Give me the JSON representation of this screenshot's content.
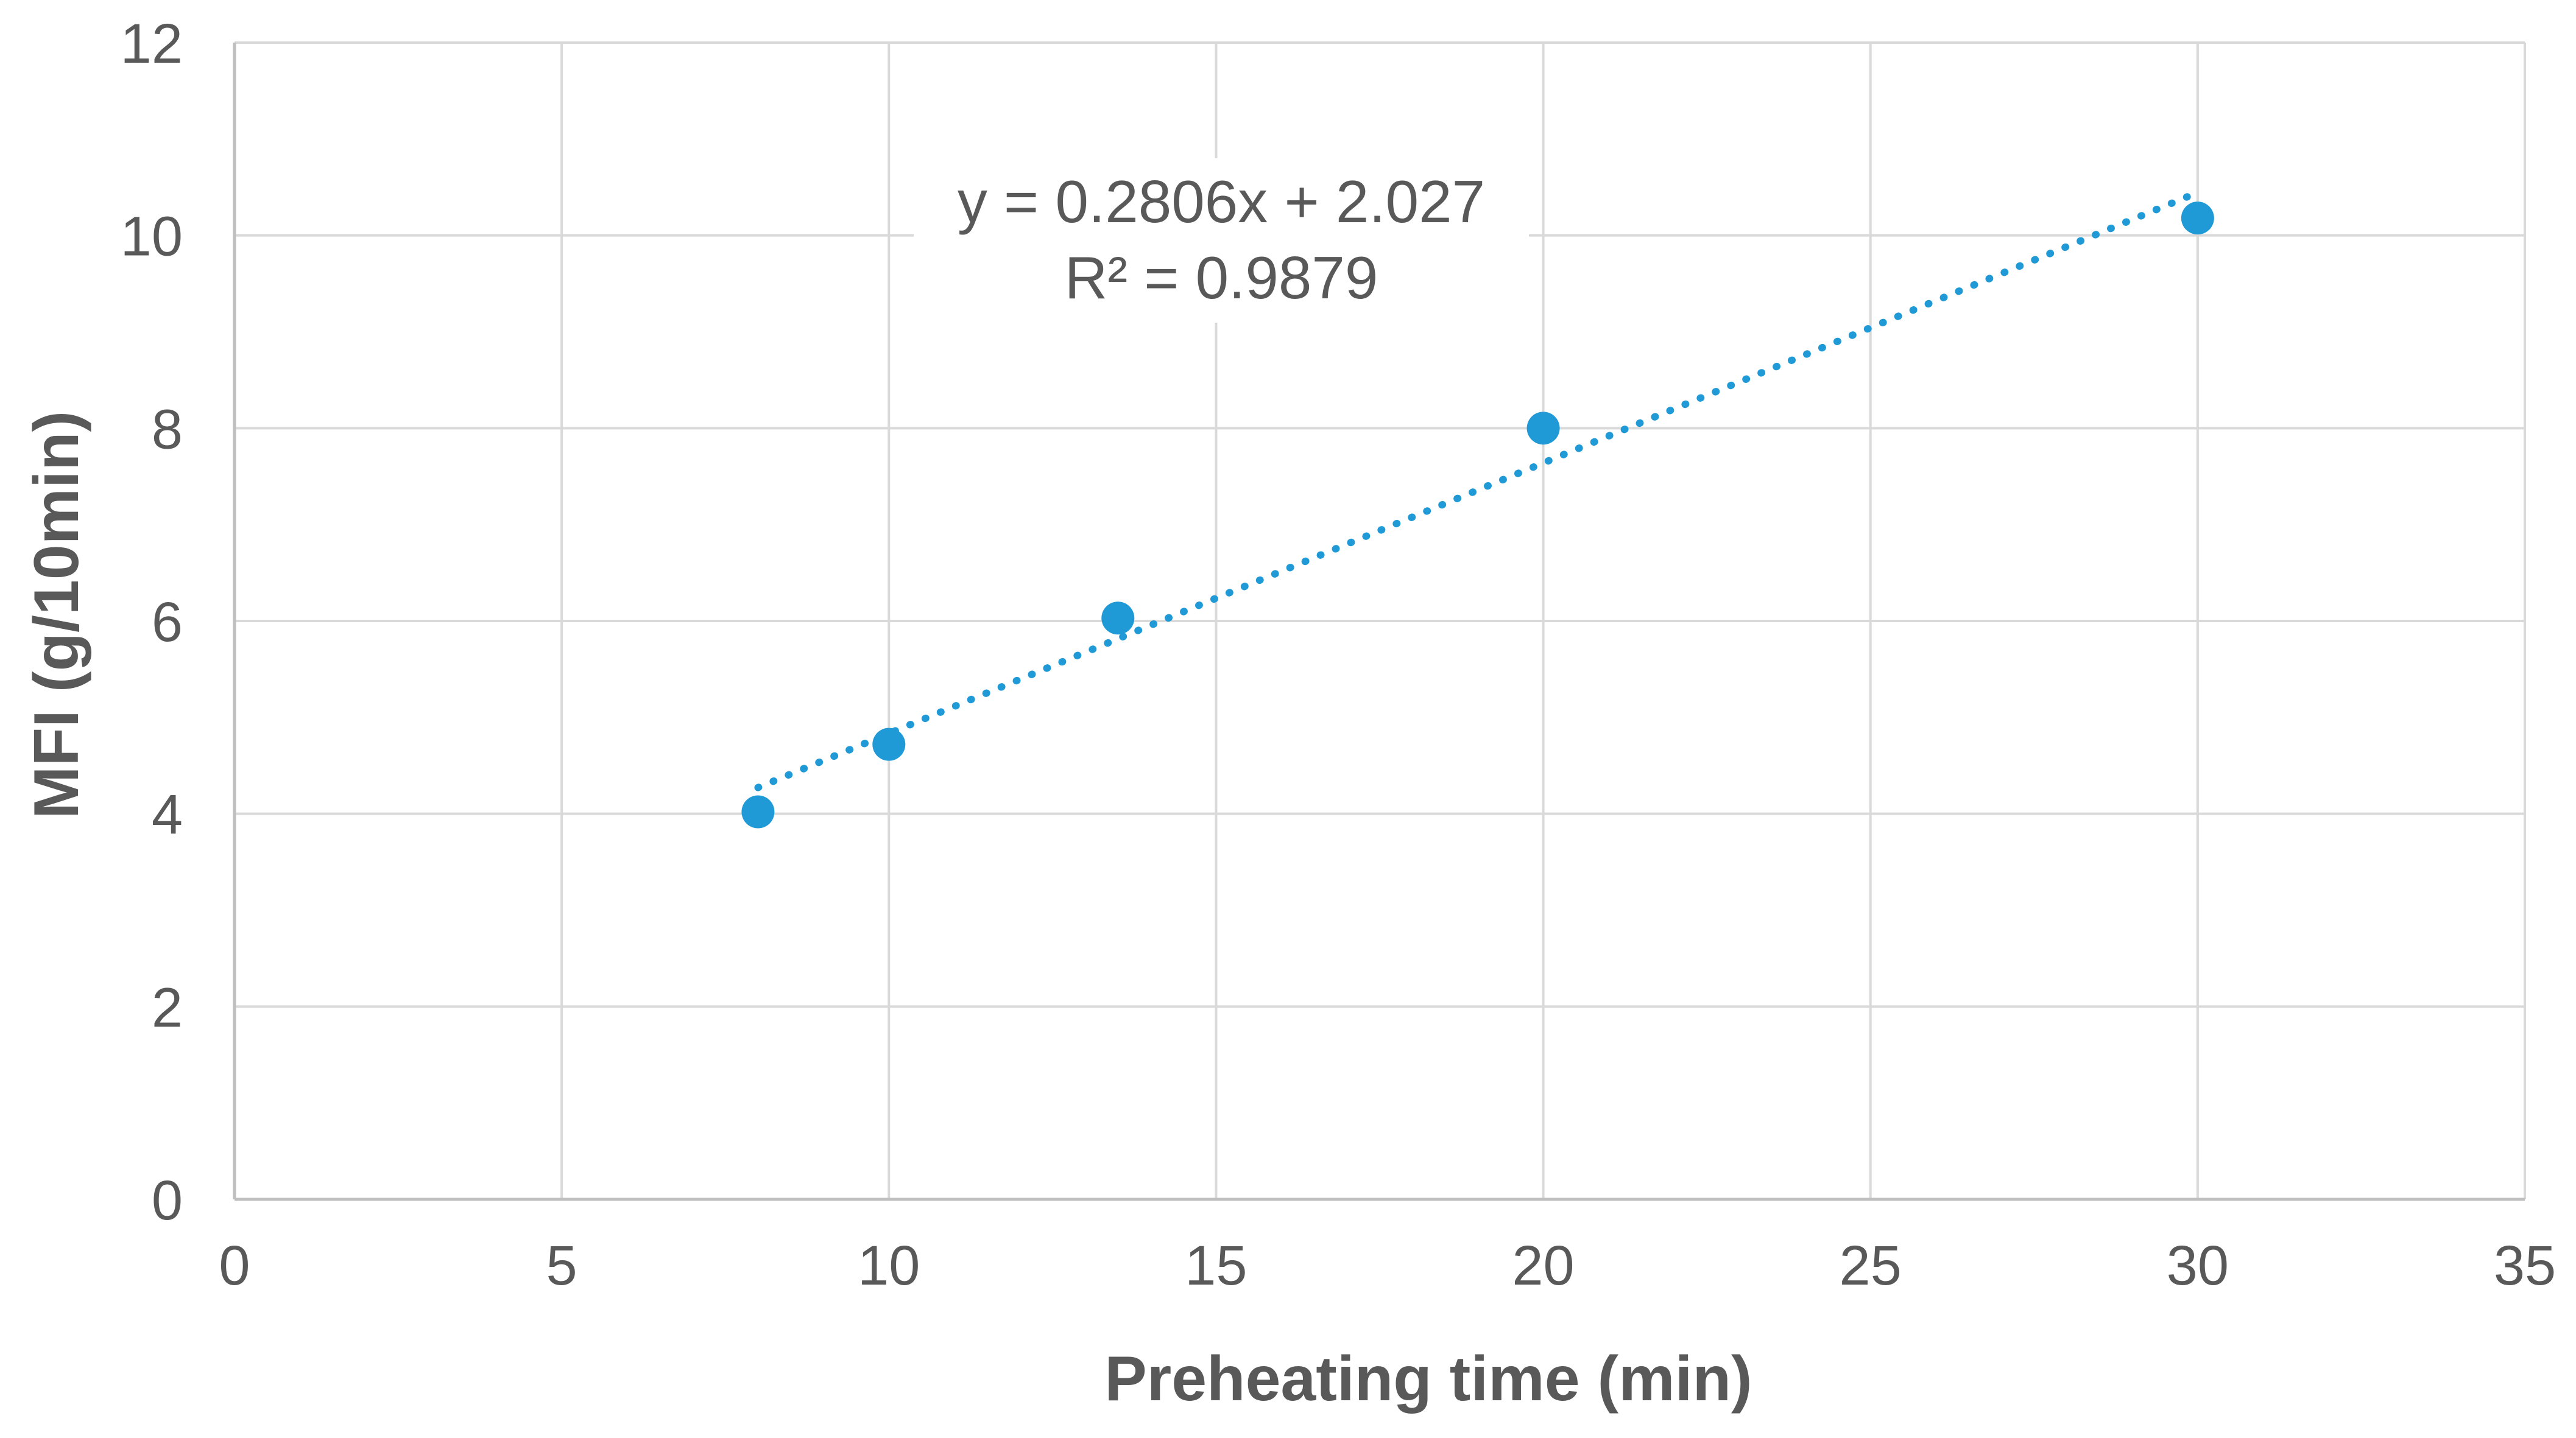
{
  "chart_data": {
    "type": "scatter",
    "title": "",
    "xlabel": "Preheating time (min)",
    "ylabel": "MFI (g/10min)",
    "xlim": [
      0,
      35
    ],
    "ylim": [
      0,
      12
    ],
    "x_ticks": [
      0,
      5,
      10,
      15,
      20,
      25,
      30,
      35
    ],
    "y_ticks": [
      0,
      2,
      4,
      6,
      8,
      10,
      12
    ],
    "x_tick_labels": [
      "0",
      "5",
      "10",
      "15",
      "20",
      "25",
      "30",
      "35"
    ],
    "y_tick_labels": [
      "0",
      "2",
      "4",
      "6",
      "8",
      "10",
      "12"
    ],
    "grid": true,
    "series": [
      {
        "name": "MFI",
        "color": "#1f9ad6",
        "x": [
          8,
          10,
          13.5,
          20,
          30
        ],
        "y": [
          4.02,
          4.72,
          6.03,
          8.0,
          10.18
        ]
      }
    ],
    "trendline": {
      "type": "linear",
      "slope": 0.2806,
      "intercept": 2.027,
      "x_range": [
        8,
        30
      ],
      "color": "#1f9ad6",
      "style": "dotted",
      "equation_label": "y = 0.2806x + 2.027",
      "r2_label": "R² = 0.9879"
    },
    "colors": {
      "grid": "#d9d9d9",
      "axis": "#bfbfbf",
      "text": "#595959"
    }
  }
}
